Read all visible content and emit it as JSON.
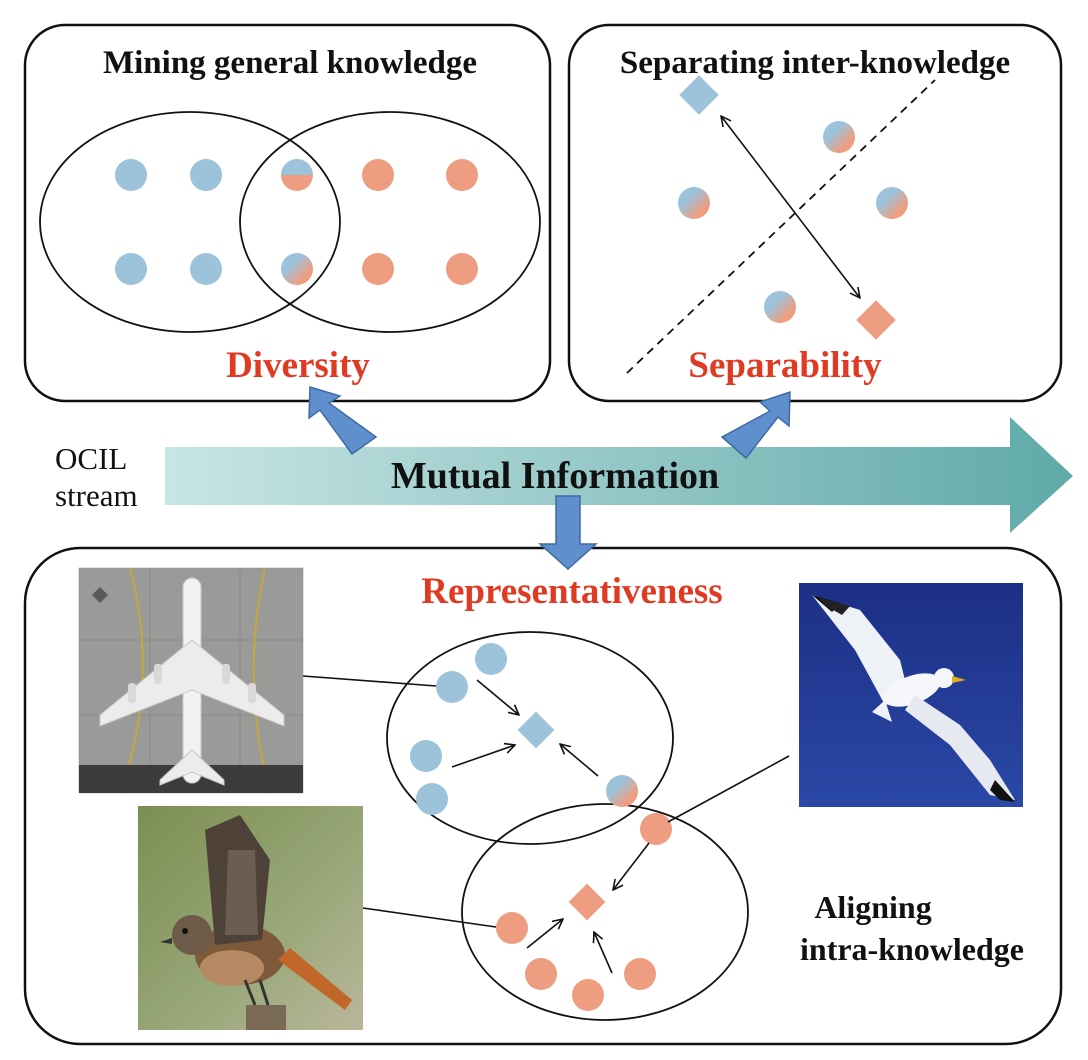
{
  "panels": {
    "mining": {
      "title": "Mining general knowledge",
      "metric": "Diversity"
    },
    "separating": {
      "title": "Separating inter-knowledge",
      "metric": "Separability"
    },
    "aligning": {
      "metric": "Representativeness",
      "title_line1": "Aligning",
      "title_line2": "intra-knowledge"
    }
  },
  "stream": {
    "label_line1": "OCIL",
    "label_line2": "stream",
    "arrow_label": "Mutual Information"
  },
  "colors": {
    "blue": "#9dc3da",
    "orange": "#ee9d80",
    "red_text": "#e03a23",
    "arrow_blue": "#5f8fcc",
    "stream_start": "#c8e5e5",
    "stream_end": "#5faaa8"
  },
  "images": [
    {
      "name": "airplane-photo",
      "subject": "airplane"
    },
    {
      "name": "small-bird-photo",
      "subject": "small bird"
    },
    {
      "name": "seagull-photo",
      "subject": "seagull"
    }
  ]
}
